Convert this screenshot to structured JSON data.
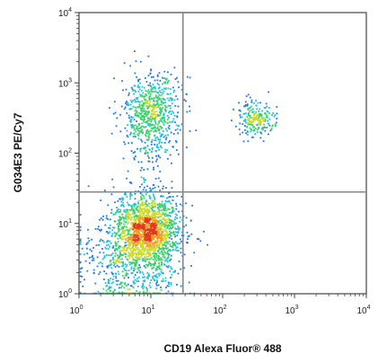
{
  "chart_data": {
    "type": "scatter",
    "title": "",
    "xlabel": "CD19 Alexa Fluor® 488",
    "ylabel": "G034E3 PE/Cy7",
    "xscale": "log",
    "yscale": "log",
    "xlim": [
      1,
      10000
    ],
    "ylim": [
      1,
      10000
    ],
    "x_tick_values": [
      1,
      10,
      100,
      1000,
      10000
    ],
    "y_tick_values": [
      1,
      10,
      100,
      1000,
      10000
    ],
    "tick_labels": {
      "base": "10",
      "exponents": [
        "0",
        "1",
        "2",
        "3",
        "4"
      ]
    },
    "quadrant_gate": {
      "x": 28,
      "y": 28
    },
    "color_scale": [
      "#1f2ec8",
      "#1c78e8",
      "#19c2d8",
      "#38d06a",
      "#c8dc28",
      "#f0a020",
      "#e03a18"
    ],
    "populations": [
      {
        "description": "CD19- / G034E3- dense cluster",
        "x_center": 9,
        "y_center": 8,
        "x_spread_decades": 0.22,
        "y_spread_decades": 0.28,
        "count": 1500
      },
      {
        "description": "CD19- / G034E3+ cluster",
        "x_center": 10,
        "y_center": 350,
        "x_spread_decades": 0.2,
        "y_spread_decades": 0.3,
        "count": 700
      },
      {
        "description": "CD19- low tail",
        "x_center": 5,
        "y_center": 3,
        "x_spread_decades": 0.35,
        "y_spread_decades": 0.4,
        "count": 650
      },
      {
        "description": "CD19+ / G034E3+ cluster",
        "x_center": 300,
        "y_center": 300,
        "x_spread_decades": 0.13,
        "y_spread_decades": 0.13,
        "count": 230
      }
    ]
  }
}
